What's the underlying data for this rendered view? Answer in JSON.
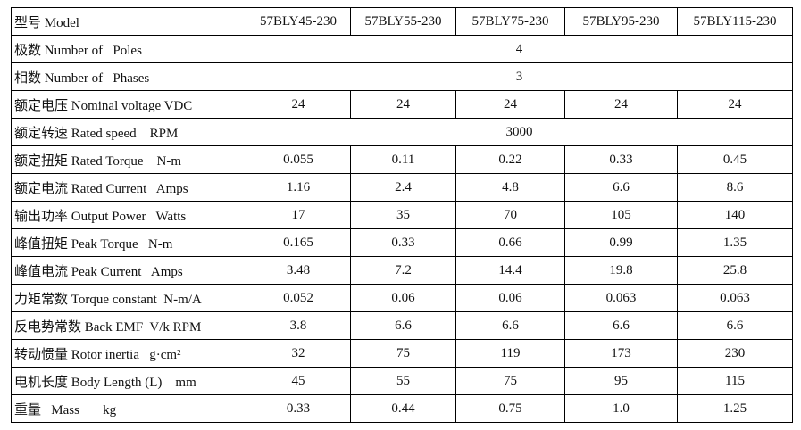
{
  "table": {
    "header": [
      "型号 Model",
      "57BLY45-230",
      "57BLY55-230",
      "57BLY75-230",
      "57BLY95-230",
      "57BLY115-230"
    ],
    "rows": [
      {
        "label": "极数 Number of   Poles",
        "cells": [
          "4"
        ]
      },
      {
        "label": "相数 Number of   Phases",
        "cells": [
          "3"
        ]
      },
      {
        "label": "额定电压 Nominal voltage VDC",
        "cells": [
          "24",
          "24",
          "24",
          "24",
          "24"
        ]
      },
      {
        "label": "额定转速 Rated speed    RPM",
        "cells": [
          "3000"
        ]
      },
      {
        "label": "额定扭矩 Rated Torque    N-m",
        "cells": [
          "0.055",
          "0.11",
          "0.22",
          "0.33",
          "0.45"
        ]
      },
      {
        "label": "额定电流 Rated Current   Amps",
        "cells": [
          "1.16",
          "2.4",
          "4.8",
          "6.6",
          "8.6"
        ]
      },
      {
        "label": "输出功率 Output Power   Watts",
        "cells": [
          "17",
          "35",
          "70",
          "105",
          "140"
        ]
      },
      {
        "label": "峰值扭矩 Peak Torque   N-m",
        "cells": [
          "0.165",
          "0.33",
          "0.66",
          "0.99",
          "1.35"
        ]
      },
      {
        "label": "峰值电流 Peak Current   Amps",
        "cells": [
          "3.48",
          "7.2",
          "14.4",
          "19.8",
          "25.8"
        ]
      },
      {
        "label": "力矩常数 Torque constant  N-m/A",
        "cells": [
          "0.052",
          "0.06",
          "0.06",
          "0.063",
          "0.063"
        ]
      },
      {
        "label": "反电势常数 Back EMF  V/k RPM",
        "cells": [
          "3.8",
          "6.6",
          "6.6",
          "6.6",
          "6.6"
        ]
      },
      {
        "label": "转动惯量 Rotor inertia   g·cm²",
        "cells": [
          "32",
          "75",
          "119",
          "173",
          "230"
        ]
      },
      {
        "label": "电机长度 Body Length (L)    mm",
        "cells": [
          "45",
          "55",
          "75",
          "95",
          "115"
        ]
      },
      {
        "label": "重量   Mass       kg",
        "cells": [
          "0.33",
          "0.44",
          "0.75",
          "1.0",
          "1.25"
        ]
      }
    ]
  }
}
